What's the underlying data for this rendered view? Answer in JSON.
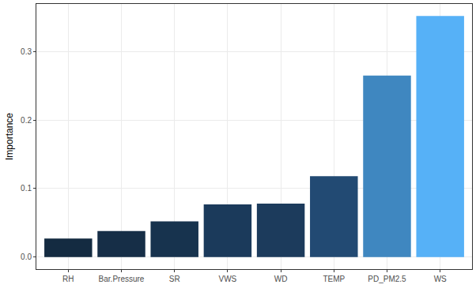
{
  "chart_data": {
    "type": "bar",
    "categories": [
      "RH",
      "Bar.Pressure",
      "SR",
      "VWS",
      "WD",
      "TEMP",
      "PD_PM2.5",
      "WS"
    ],
    "values": [
      0.027,
      0.038,
      0.052,
      0.077,
      0.078,
      0.118,
      0.265,
      0.352
    ],
    "colors": [
      "#142b41",
      "#162e47",
      "#17334e",
      "#1b3a5b",
      "#1c3b5c",
      "#224a73",
      "#3f87c0",
      "#56b1f7"
    ],
    "y_label": "Importance",
    "ylim": [
      -0.0176,
      0.3696
    ],
    "yticks": [
      {
        "value": 0,
        "label": "0.0"
      },
      0.1,
      0.2,
      0.3
    ],
    "grid": true
  }
}
